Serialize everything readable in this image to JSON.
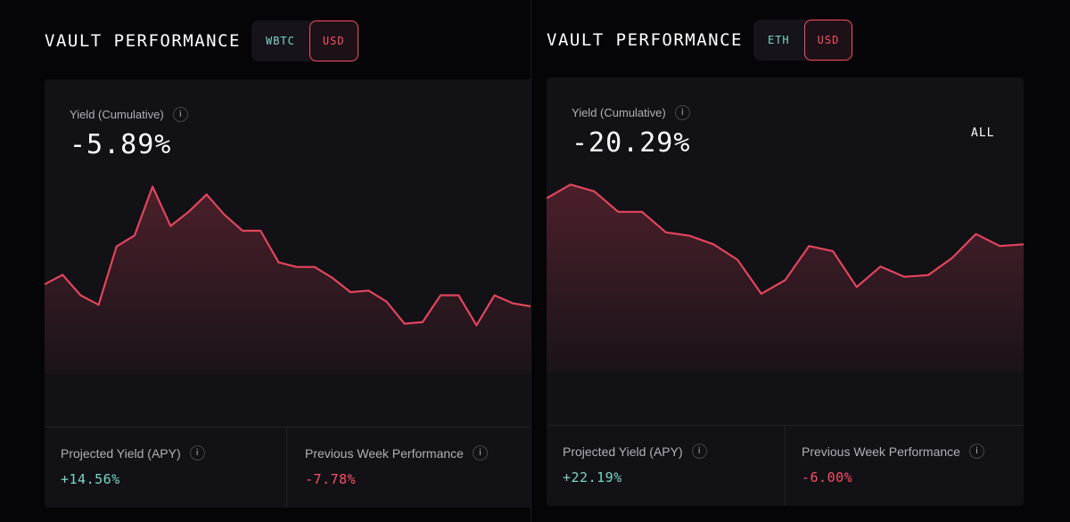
{
  "colors": {
    "background": "#050507",
    "card": "#111116",
    "negative": "#fc4f66",
    "positive": "#7ad6c5",
    "line": "#e2455e"
  },
  "left": {
    "title": "VAULT PERFORMANCE",
    "asset_label": "WBTC",
    "currency_label": "USD",
    "selected": "USD",
    "yield_label": "Yield (Cumulative)",
    "yield_value": "-5.89%",
    "info_glyph": "i",
    "stats": {
      "projected_label": "Projected Yield (APY)",
      "projected_value": "+14.56%",
      "prev_week_label": "Previous Week Performance",
      "prev_week_value": "-7.78%"
    }
  },
  "right": {
    "title": "VAULT PERFORMANCE",
    "asset_label": "ETH",
    "currency_label": "USD",
    "selected": "USD",
    "yield_label": "Yield (Cumulative)",
    "yield_value": "-20.29%",
    "range_label": "ALL",
    "info_glyph": "i",
    "stats": {
      "projected_label": "Projected Yield (APY)",
      "projected_value": "+22.19%",
      "prev_week_label": "Previous Week Performance",
      "prev_week_value": "-6.00%"
    }
  },
  "chart_data": [
    {
      "type": "area",
      "title": "",
      "xlabel": "",
      "ylabel": "",
      "grid": false,
      "ylim": [
        -10,
        3
      ],
      "values": [
        -4.3,
        -3.7,
        -5.0,
        -5.6,
        -1.9,
        -1.2,
        1.9,
        -0.6,
        0.3,
        1.4,
        0.1,
        -0.9,
        -0.9,
        -2.9,
        -3.2,
        -3.2,
        -3.9,
        -4.8,
        -4.7,
        -5.4,
        -6.8,
        -6.7,
        -5.0,
        -5.0,
        -6.9,
        -5.0,
        -5.5,
        -5.7
      ]
    },
    {
      "type": "area",
      "title": "",
      "xlabel": "",
      "ylabel": "",
      "grid": false,
      "ylim": [
        -28,
        -16
      ],
      "values": [
        -17.8,
        -17.0,
        -17.4,
        -18.6,
        -18.6,
        -19.8,
        -20.0,
        -20.5,
        -21.4,
        -23.4,
        -22.6,
        -20.6,
        -20.9,
        -23.0,
        -21.8,
        -22.4,
        -22.3,
        -21.3,
        -19.9,
        -20.6,
        -20.5
      ]
    }
  ]
}
